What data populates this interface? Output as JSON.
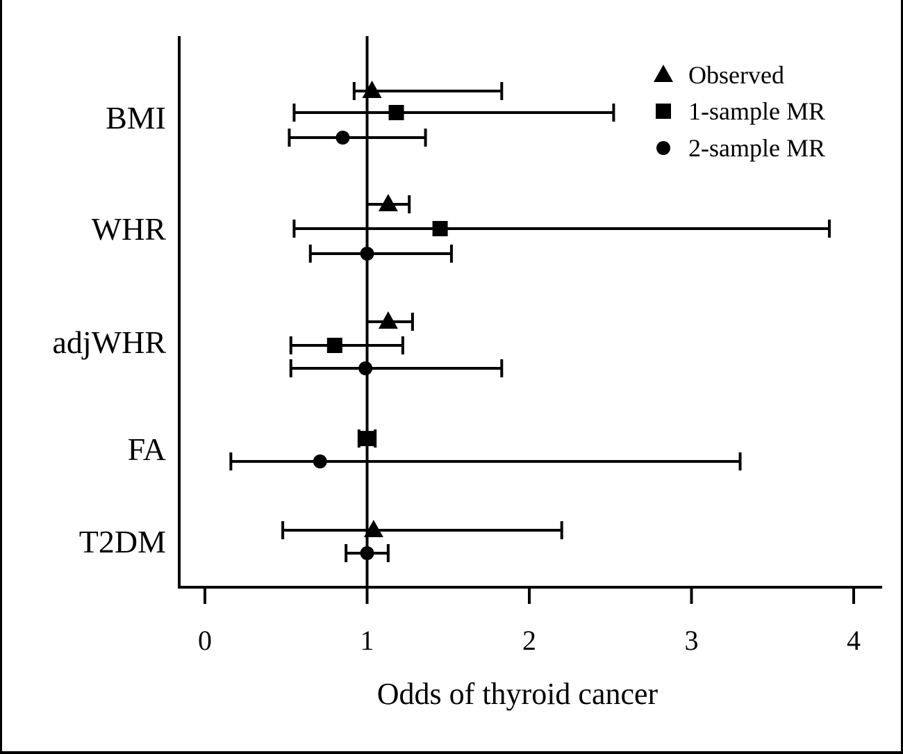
{
  "chart_data": {
    "type": "scatter",
    "subtype": "forest-plot",
    "title": "",
    "xlabel": "Odds of thyroid cancer",
    "ylabel": "",
    "xlim": [
      -0.15,
      4.15
    ],
    "xticks": [
      0,
      1,
      2,
      3,
      4
    ],
    "reference_line": 1,
    "grid": false,
    "legend_position": "top-right",
    "categories": [
      "BMI",
      "WHR",
      "adjWHR",
      "FA",
      "T2DM"
    ],
    "series": [
      {
        "name": "Observed",
        "marker": "triangle",
        "points": [
          {
            "category": "BMI",
            "estimate": 1.03,
            "lower": 0.92,
            "upper": 1.83
          },
          {
            "category": "WHR",
            "estimate": 1.13,
            "lower": 1.0,
            "upper": 1.26
          },
          {
            "category": "adjWHR",
            "estimate": 1.13,
            "lower": 1.0,
            "upper": 1.28
          },
          {
            "category": "T2DM",
            "estimate": 1.04,
            "lower": 0.48,
            "upper": 2.2
          }
        ]
      },
      {
        "name": "1-sample MR",
        "marker": "square",
        "points": [
          {
            "category": "BMI",
            "estimate": 1.18,
            "lower": 0.55,
            "upper": 2.52
          },
          {
            "category": "WHR",
            "estimate": 1.45,
            "lower": 0.55,
            "upper": 3.85
          },
          {
            "category": "adjWHR",
            "estimate": 0.8,
            "lower": 0.53,
            "upper": 1.22
          },
          {
            "category": "FA",
            "estimate": 1.0,
            "lower": 0.95,
            "upper": 1.05
          }
        ]
      },
      {
        "name": "2-sample MR",
        "marker": "circle",
        "points": [
          {
            "category": "BMI",
            "estimate": 0.85,
            "lower": 0.52,
            "upper": 1.36
          },
          {
            "category": "WHR",
            "estimate": 1.0,
            "lower": 0.65,
            "upper": 1.52
          },
          {
            "category": "adjWHR",
            "estimate": 0.99,
            "lower": 0.53,
            "upper": 1.83
          },
          {
            "category": "FA",
            "estimate": 0.71,
            "lower": 0.16,
            "upper": 3.3
          },
          {
            "category": "T2DM",
            "estimate": 1.0,
            "lower": 0.87,
            "upper": 1.13
          }
        ]
      }
    ]
  }
}
